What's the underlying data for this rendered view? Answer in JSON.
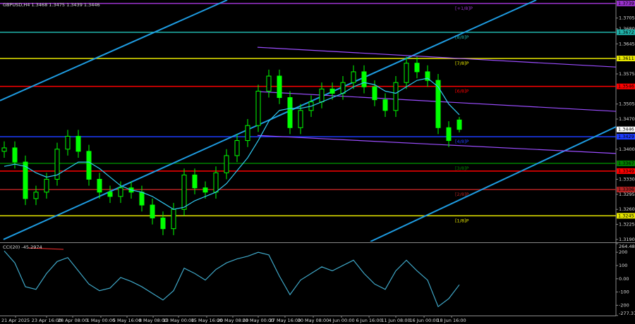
{
  "chart_data": [
    {
      "type": "candlestick",
      "title": "GBPUSD,H4 1.3468 1.3475 1.3439 1.3446",
      "candle_color": "#00ff00",
      "ma_color": "#30c8f0",
      "xlim": [
        -0.4,
        57.8
      ],
      "xticks": [
        {
          "value": 1.07,
          "label": "21 Apr 2025"
        },
        {
          "value": 4.0,
          "label": "23 Apr 16:00"
        },
        {
          "value": 6.47,
          "label": "28 Apr 08:00"
        },
        {
          "value": 9.13,
          "label": "1 May 00:00"
        },
        {
          "value": 11.6,
          "label": "5 May 16:00"
        },
        {
          "value": 14.07,
          "label": "8 May 08:00"
        },
        {
          "value": 16.47,
          "label": "13 May 00:00"
        },
        {
          "value": 19.13,
          "label": "15 May 16:00"
        },
        {
          "value": 21.6,
          "label": "20 May 08:00"
        },
        {
          "value": 24.0,
          "label": "23 May 00:00"
        },
        {
          "value": 26.53,
          "label": "27 May 16:00"
        },
        {
          "value": 29.2,
          "label": "30 May 08:00"
        },
        {
          "value": 31.87,
          "label": "4 Jun 00:00"
        },
        {
          "value": 34.47,
          "label": "6 Jun 16:00"
        },
        {
          "value": 37.0,
          "label": "11 Jun 08:00"
        },
        {
          "value": 39.67,
          "label": "16 Jun 00:00"
        },
        {
          "value": 42.27,
          "label": "18 Jun 16:00"
        }
      ],
      "ylim": [
        1.3185,
        1.3747
      ],
      "yticks": [
        {
          "value": 1.319,
          "label": "1.3190"
        },
        {
          "value": 1.3225,
          "label": "1.3225"
        },
        {
          "value": 1.326,
          "label": "1.3260"
        },
        {
          "value": 1.3295,
          "label": "1.3295"
        },
        {
          "value": 1.333,
          "label": "1.3330"
        },
        {
          "value": 1.34,
          "label": "1.3400"
        },
        {
          "value": 1.347,
          "label": "1.3470"
        },
        {
          "value": 1.3505,
          "label": "1.3505"
        },
        {
          "value": 1.3575,
          "label": "1.3575"
        },
        {
          "value": 1.3645,
          "label": "1.3645"
        },
        {
          "value": 1.368,
          "label": "1.3680"
        },
        {
          "value": 1.3705,
          "label": "1.3705"
        }
      ],
      "open": [
        1.3395,
        1.3403,
        1.337,
        1.3285,
        1.33,
        1.333,
        1.34,
        1.343,
        1.3395,
        1.333,
        1.33,
        1.329,
        1.331,
        1.33,
        1.327,
        1.324,
        1.3215,
        1.326,
        1.334,
        1.331,
        1.33,
        1.3345,
        1.3385,
        1.342,
        1.3455,
        1.3535,
        1.357,
        1.352,
        1.345,
        1.349,
        1.351,
        1.354,
        1.353,
        1.3555,
        1.358,
        1.3545,
        1.3515,
        1.349,
        1.3555,
        1.36,
        1.358,
        1.356,
        1.345,
        1.3468
      ],
      "high": [
        1.3418,
        1.3418,
        1.3385,
        1.3315,
        1.3345,
        1.3415,
        1.3445,
        1.3445,
        1.341,
        1.3345,
        1.3315,
        1.3325,
        1.3325,
        1.3315,
        1.3285,
        1.3255,
        1.3275,
        1.3355,
        1.3355,
        1.3325,
        1.336,
        1.34,
        1.3435,
        1.347,
        1.355,
        1.3585,
        1.3585,
        1.3535,
        1.3505,
        1.3525,
        1.3555,
        1.3555,
        1.357,
        1.3595,
        1.3595,
        1.356,
        1.353,
        1.357,
        1.3615,
        1.3615,
        1.3595,
        1.3575,
        1.3465,
        1.3475
      ],
      "low": [
        1.338,
        1.3355,
        1.327,
        1.327,
        1.3285,
        1.3315,
        1.3385,
        1.338,
        1.3315,
        1.3285,
        1.3275,
        1.3275,
        1.3285,
        1.3255,
        1.3225,
        1.32,
        1.32,
        1.3245,
        1.3295,
        1.3285,
        1.3285,
        1.333,
        1.337,
        1.3405,
        1.344,
        1.352,
        1.3505,
        1.3435,
        1.3435,
        1.3475,
        1.3495,
        1.3515,
        1.3515,
        1.354,
        1.353,
        1.35,
        1.3475,
        1.3475,
        1.354,
        1.3565,
        1.3545,
        1.3435,
        1.3405,
        1.3439
      ],
      "close": [
        1.3403,
        1.337,
        1.3285,
        1.33,
        1.333,
        1.34,
        1.343,
        1.3395,
        1.333,
        1.33,
        1.329,
        1.331,
        1.33,
        1.327,
        1.324,
        1.3215,
        1.326,
        1.334,
        1.331,
        1.33,
        1.3345,
        1.3385,
        1.342,
        1.3455,
        1.3535,
        1.357,
        1.352,
        1.345,
        1.349,
        1.351,
        1.354,
        1.353,
        1.3555,
        1.358,
        1.3545,
        1.3515,
        1.349,
        1.3555,
        1.36,
        1.358,
        1.356,
        1.345,
        1.342,
        1.3446
      ],
      "ma": [
        1.336,
        1.3365,
        1.336,
        1.3345,
        1.3335,
        1.334,
        1.3355,
        1.337,
        1.337,
        1.3355,
        1.3335,
        1.3315,
        1.3305,
        1.33,
        1.329,
        1.3275,
        1.326,
        1.3265,
        1.328,
        1.329,
        1.33,
        1.332,
        1.335,
        1.338,
        1.342,
        1.3465,
        1.349,
        1.3495,
        1.3495,
        1.35,
        1.351,
        1.352,
        1.353,
        1.3545,
        1.3555,
        1.355,
        1.3535,
        1.353,
        1.3545,
        1.356,
        1.3565,
        1.3545,
        1.3505,
        1.348
      ],
      "trendlines": [
        {
          "color": "#1e9be0",
          "x": [
            -0.4,
            21.07
          ],
          "y": [
            1.3513,
            1.3747
          ]
        },
        {
          "color": "#1e9be0",
          "x": [
            -0.07,
            50.27
          ],
          "y": [
            1.319,
            1.3747
          ]
        },
        {
          "color": "#1e9be0",
          "x": [
            34.6,
            57.8
          ],
          "y": [
            1.3185,
            1.3452
          ]
        },
        {
          "color": "#9b4dff",
          "x": [
            23.93,
            57.8
          ],
          "y": [
            1.3637,
            1.3591
          ]
        },
        {
          "color": "#9b4dff",
          "x": [
            23.93,
            57.8
          ],
          "y": [
            1.3534,
            1.3488
          ]
        },
        {
          "color": "#9b4dff",
          "x": [
            23.93,
            57.8
          ],
          "y": [
            1.3432,
            1.339
          ]
        }
      ],
      "levels": [
        {
          "value": 1.3739,
          "color": "#9932cc",
          "tag": "[+1/8]P"
        },
        {
          "value": 1.3672,
          "color": "#20b2aa",
          "tag": "[8/8]P"
        },
        {
          "value": 1.3611,
          "color": "#e6e600",
          "tag": "[7/8]P"
        },
        {
          "value": 1.3546,
          "color": "#ff0000",
          "tag": "[6/8]P"
        },
        {
          "value": 1.3429,
          "color": "#1e3cff",
          "tag": "[4/8]P"
        },
        {
          "value": 1.3367,
          "color": "#008000",
          "tag": "[3/8]P"
        },
        {
          "value": 1.3349,
          "color": "#ff0000"
        },
        {
          "value": 1.3306,
          "color": "#b22222",
          "tag": "[2/8]P"
        },
        {
          "value": 1.3245,
          "color": "#e6e600",
          "tag": "[1/8]P"
        }
      ],
      "current_price": 1.3446
    },
    {
      "type": "line",
      "title": "CCI(20) -45.2974",
      "color": "#3fa7c7",
      "ylim": [
        -277.3772,
        264.4853
      ],
      "yticks": [
        264.4853,
        200,
        100,
        {
          "value": 0,
          "label": "0.00"
        },
        -100,
        -200,
        -277.3772
      ],
      "values": [
        210,
        120,
        -60,
        -80,
        40,
        130,
        160,
        60,
        -40,
        -90,
        -70,
        10,
        -20,
        -60,
        -110,
        -160,
        -90,
        80,
        40,
        -10,
        70,
        120,
        150,
        170,
        200,
        180,
        20,
        -120,
        -10,
        40,
        90,
        60,
        100,
        140,
        40,
        -40,
        -80,
        60,
        140,
        60,
        -10,
        -210,
        -150,
        -45.2974
      ]
    }
  ]
}
